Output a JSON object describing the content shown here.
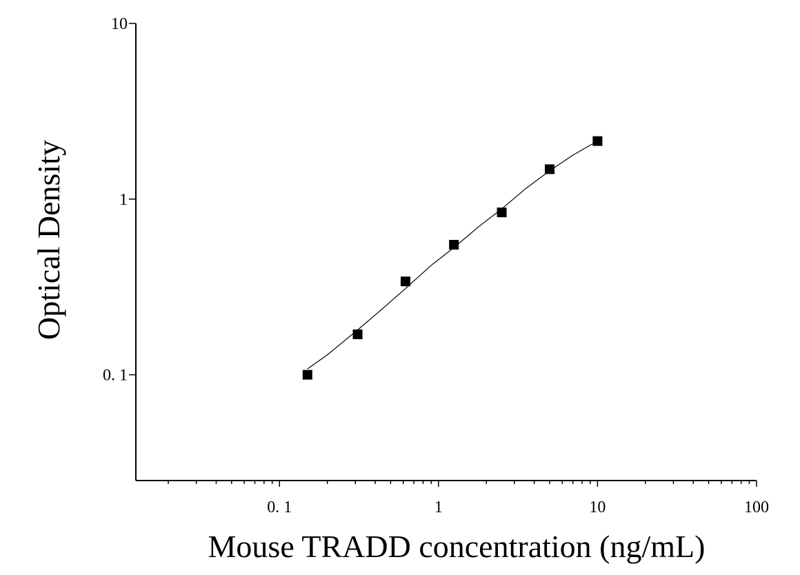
{
  "chart_data": {
    "type": "scatter",
    "title": "",
    "xlabel": "Mouse TRADD concentration (ng/mL)",
    "ylabel": "Optical Density",
    "x_scale": "log",
    "y_scale": "log",
    "xlim": [
      0.0125,
      100
    ],
    "ylim": [
      0.025,
      10
    ],
    "x_ticks": [
      {
        "value": 0.1,
        "label": "0. 1"
      },
      {
        "value": 1,
        "label": "1"
      },
      {
        "value": 10,
        "label": "10"
      },
      {
        "value": 100,
        "label": "100"
      }
    ],
    "y_ticks": [
      {
        "value": 0.1,
        "label": "0. 1"
      },
      {
        "value": 1,
        "label": "1"
      },
      {
        "value": 10,
        "label": "10"
      }
    ],
    "grid": false,
    "legend": "none",
    "marker": "square",
    "marker_color": "#000000",
    "line_color": "#000000",
    "series": [
      {
        "x": [
          0.15,
          0.31,
          0.62,
          1.25,
          2.5,
          5,
          10
        ],
        "y": [
          0.1,
          0.17,
          0.34,
          0.55,
          0.84,
          1.48,
          2.14
        ]
      }
    ],
    "fit_curve": {
      "x": [
        0.15,
        0.2,
        0.31,
        0.45,
        0.62,
        0.9,
        1.25,
        1.8,
        2.5,
        3.5,
        5,
        7,
        10
      ],
      "y": [
        0.108,
        0.13,
        0.18,
        0.24,
        0.31,
        0.42,
        0.53,
        0.7,
        0.88,
        1.14,
        1.45,
        1.78,
        2.14
      ]
    }
  }
}
